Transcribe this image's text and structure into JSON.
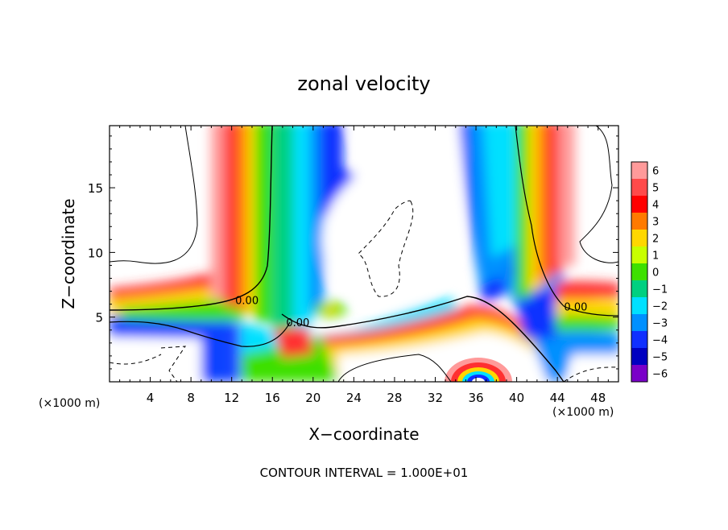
{
  "chart_data": {
    "type": "heatmap",
    "title": "zonal velocity",
    "xlabel": "X−coordinate",
    "ylabel": "Z−coordinate",
    "x_unit_left": "(×1000 m)",
    "x_unit_right": "(×1000 m)",
    "footer": "CONTOUR INTERVAL = 1.000E+01",
    "xlim": [
      0,
      50
    ],
    "ylim": [
      0,
      19.8
    ],
    "x_ticks": [
      4,
      8,
      12,
      16,
      20,
      24,
      28,
      32,
      36,
      40,
      44,
      48
    ],
    "y_ticks": [
      5,
      10,
      15
    ],
    "colorbar": {
      "levels": [
        6,
        5,
        4,
        3,
        2,
        1,
        0,
        -1,
        -2,
        -3,
        -4,
        -5,
        -6
      ],
      "labels": [
        "6",
        "5",
        "4",
        "3",
        "2",
        "1",
        "0",
        "−1",
        "−2",
        "−3",
        "−4",
        "−5",
        "−6"
      ],
      "colors": [
        "#ff9a9a",
        "#ff4a4a",
        "#ff0000",
        "#ff7a00",
        "#ffd700",
        "#c8ff00",
        "#3ee000",
        "#00d080",
        "#00e0ff",
        "#0090ff",
        "#1030ff",
        "#0000c0",
        "#7a00c8"
      ]
    },
    "contour_labels": [
      {
        "text": "0.00",
        "x": 13.5,
        "y": 6.0
      },
      {
        "text": "0.00",
        "x": 18.5,
        "y": 4.3
      },
      {
        "text": "0.00",
        "x": 45.8,
        "y": 5.5
      }
    ],
    "grid": false,
    "legend_placement": "right colorbar"
  }
}
